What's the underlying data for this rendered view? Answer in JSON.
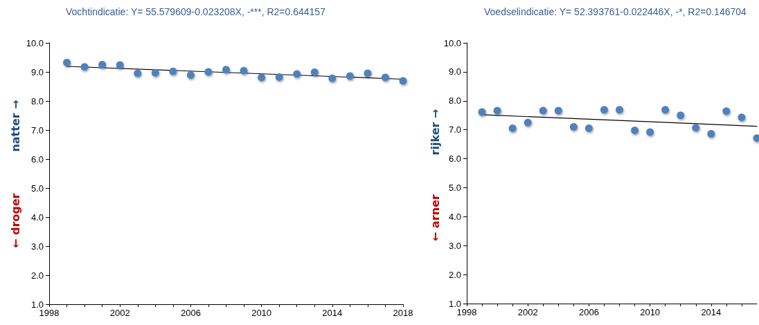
{
  "chart_data": [
    {
      "type": "scatter",
      "title": "Vochtindicatie: Y= 55.579609-0.023208X, -***, R2=0.644157",
      "annotations": [
        "natter →",
        "← droger"
      ],
      "marker": "circle",
      "x": [
        1999,
        2000,
        2001,
        2002,
        2003,
        2004,
        2005,
        2006,
        2007,
        2008,
        2009,
        2010,
        2011,
        2012,
        2013,
        2014,
        2015,
        2016,
        2017,
        2018
      ],
      "series": [
        {
          "color": "#4f81bd",
          "values": [
            9.32,
            9.17,
            9.25,
            9.24,
            8.95,
            8.97,
            9.02,
            8.89,
            9.0,
            9.08,
            9.04,
            8.81,
            8.82,
            8.93,
            8.99,
            8.78,
            8.86,
            8.95,
            8.81,
            8.69
          ]
        },
        {
          "type": "line",
          "marker": "none",
          "color": "#000000",
          "x": [
            1999,
            2018
          ],
          "values": [
            9.19,
            8.75
          ]
        }
      ],
      "xlim": [
        1998,
        2018
      ],
      "ylim": [
        1,
        10
      ],
      "xticks": [
        1998,
        {
          "value": 1999,
          "label": null
        },
        {
          "value": 2000,
          "label": null
        },
        {
          "value": 2001,
          "label": null
        },
        2002,
        {
          "value": 2003,
          "label": null
        },
        {
          "value": 2004,
          "label": null
        },
        {
          "value": 2005,
          "label": null
        },
        2006,
        {
          "value": 2007,
          "label": null
        },
        {
          "value": 2008,
          "label": null
        },
        {
          "value": 2009,
          "label": null
        },
        2010,
        {
          "value": 2011,
          "label": null
        },
        {
          "value": 2012,
          "label": null
        },
        {
          "value": 2013,
          "label": null
        },
        2014,
        {
          "value": 2015,
          "label": null
        },
        {
          "value": 2016,
          "label": null
        },
        {
          "value": 2017,
          "label": null
        },
        2018
      ],
      "yticks": [
        {
          "value": 1,
          "label": "1.0"
        },
        {
          "value": 2,
          "label": "2.0"
        },
        {
          "value": 3,
          "label": "3.0"
        },
        {
          "value": 4,
          "label": "4.0"
        },
        {
          "value": 5,
          "label": "5.0"
        },
        {
          "value": 6,
          "label": "6.0"
        },
        {
          "value": 7,
          "label": "7.0"
        },
        {
          "value": 8,
          "label": "8.0"
        },
        {
          "value": 9,
          "label": "9.0"
        },
        {
          "value": 10,
          "label": "10.0"
        }
      ]
    },
    {
      "type": "scatter",
      "title": "Voedselindicatie: Y= 52.393761-0.022446X, -*, R2=0.146704",
      "annotations": [
        "rijker →",
        "← arner"
      ],
      "marker": "circle",
      "x": [
        1999,
        2000,
        2001,
        2002,
        2003,
        2004,
        2005,
        2006,
        2007,
        2008,
        2009,
        2010,
        2011,
        2012,
        2013,
        2014,
        2015,
        2016,
        2017
      ],
      "series": [
        {
          "color": "#4f81bd",
          "values": [
            7.61,
            7.66,
            7.05,
            7.25,
            7.66,
            7.66,
            7.1,
            7.05,
            7.69,
            7.69,
            6.98,
            6.92,
            7.69,
            7.5,
            7.07,
            6.86,
            7.64,
            7.43,
            6.71
          ]
        },
        {
          "type": "line",
          "marker": "none",
          "color": "#000000",
          "x": [
            1999,
            2017
          ],
          "values": [
            7.52,
            7.12
          ]
        }
      ],
      "xlim": [
        1998,
        2017
      ],
      "ylim": [
        1,
        10
      ],
      "xticks": [
        1998,
        {
          "value": 1999,
          "label": null
        },
        {
          "value": 2000,
          "label": null
        },
        {
          "value": 2001,
          "label": null
        },
        2002,
        {
          "value": 2003,
          "label": null
        },
        {
          "value": 2004,
          "label": null
        },
        {
          "value": 2005,
          "label": null
        },
        2006,
        {
          "value": 2007,
          "label": null
        },
        {
          "value": 2008,
          "label": null
        },
        {
          "value": 2009,
          "label": null
        },
        2010,
        {
          "value": 2011,
          "label": null
        },
        {
          "value": 2012,
          "label": null
        },
        {
          "value": 2013,
          "label": null
        },
        2014,
        {
          "value": 2015,
          "label": null
        },
        {
          "value": 2016,
          "label": null
        }
      ],
      "yticks": [
        {
          "value": 1,
          "label": "1.0"
        },
        {
          "value": 2,
          "label": "2.0"
        },
        {
          "value": 3,
          "label": "3.0"
        },
        {
          "value": 4,
          "label": "4.0"
        },
        {
          "value": 5,
          "label": "5.0"
        },
        {
          "value": 6,
          "label": "6.0"
        },
        {
          "value": 7,
          "label": "7.0"
        },
        {
          "value": 8,
          "label": "8.0"
        },
        {
          "value": 9,
          "label": "9.0"
        },
        {
          "value": 10,
          "label": "10.0"
        }
      ]
    }
  ]
}
